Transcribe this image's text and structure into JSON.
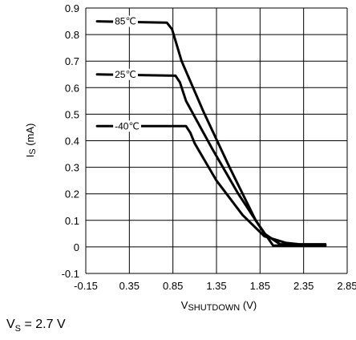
{
  "chart_data": {
    "type": "line",
    "xlabel": {
      "main": "V",
      "sub": "SHUTDOWN",
      "unit": " (V)"
    },
    "ylabel": {
      "main": "I",
      "sub": "S",
      "unit": " (mA)"
    },
    "xlim": [
      -0.15,
      2.85
    ],
    "ylim": [
      -0.1,
      0.9
    ],
    "x_ticks": [
      "-0.15",
      "0.35",
      "0.85",
      "1.35",
      "1.85",
      "2.35",
      "2.85"
    ],
    "y_ticks": [
      "-0.1",
      "0",
      "0.1",
      "0.2",
      "0.3",
      "0.4",
      "0.5",
      "0.6",
      "0.7",
      "0.8",
      "0.9"
    ],
    "grid": true,
    "series": [
      {
        "name": "85℃",
        "x": [
          -0.02,
          0.78,
          0.84,
          0.95,
          1.2,
          1.5,
          1.8,
          2.0,
          2.2,
          2.6
        ],
        "y": [
          0.85,
          0.845,
          0.82,
          0.7,
          0.51,
          0.3,
          0.1,
          0.005,
          0.005,
          0.005
        ]
      },
      {
        "name": "25℃",
        "x": [
          -0.02,
          0.88,
          0.93,
          1.0,
          1.3,
          1.6,
          1.9,
          2.08,
          2.2,
          2.6
        ],
        "y": [
          0.65,
          0.645,
          0.62,
          0.55,
          0.37,
          0.2,
          0.05,
          0.01,
          0.01,
          0.005
        ]
      },
      {
        "name": "-40℃",
        "x": [
          -0.02,
          1.0,
          1.05,
          1.1,
          1.35,
          1.65,
          1.9,
          2.15,
          2.3,
          2.6
        ],
        "y": [
          0.455,
          0.455,
          0.43,
          0.39,
          0.25,
          0.12,
          0.04,
          0.015,
          0.01,
          0.01
        ]
      }
    ]
  },
  "caption": {
    "main": "V",
    "sub": "S",
    "rest": " = 2.7 V"
  }
}
